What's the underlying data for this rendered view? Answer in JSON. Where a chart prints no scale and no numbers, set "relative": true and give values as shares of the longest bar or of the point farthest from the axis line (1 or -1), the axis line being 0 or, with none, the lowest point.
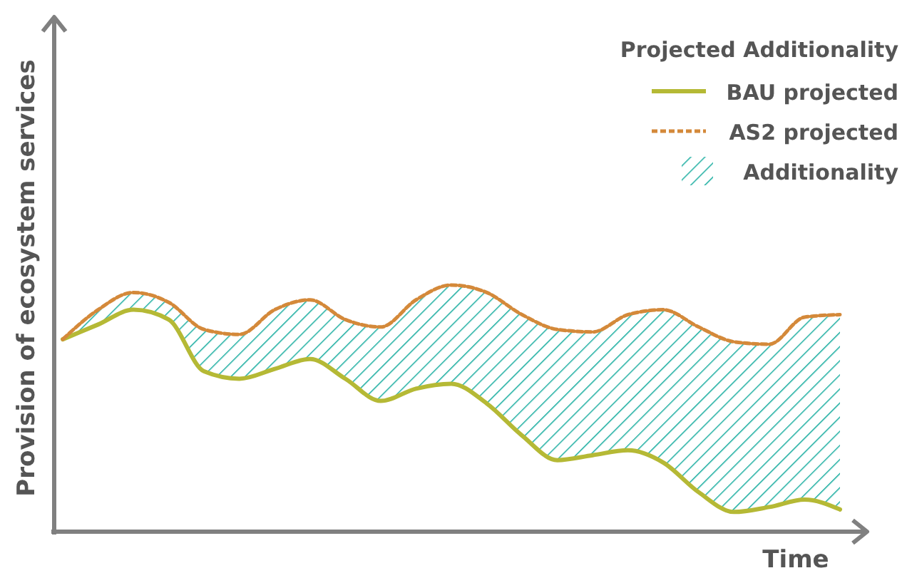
{
  "chart_data": {
    "type": "line",
    "relative": true,
    "xlabel": "Time",
    "ylabel": "Provision of ecosystem services",
    "legend_title": "Projected Additionality",
    "legend": "top right",
    "categories": [
      null,
      null,
      null,
      null,
      null,
      null,
      null,
      null,
      null,
      null,
      null,
      null,
      null,
      null,
      null,
      null,
      null,
      null,
      null,
      null,
      null,
      null,
      null
    ],
    "series": [
      {
        "name": "BAU projected",
        "type": "line",
        "color": "#b5b935",
        "line_style": "solid",
        "values": [
          0.78,
          0.84,
          0.9,
          0.86,
          0.65,
          0.62,
          0.66,
          0.7,
          0.62,
          0.53,
          0.58,
          0.6,
          0.52,
          0.39,
          0.29,
          0.31,
          0.33,
          0.28,
          0.16,
          0.08,
          0.1,
          0.13,
          0.09
        ]
      },
      {
        "name": "AS2 projected",
        "type": "line",
        "color": "#d4893a",
        "line_style": "dashed",
        "values": [
          0.78,
          0.9,
          0.97,
          0.93,
          0.82,
          0.8,
          0.9,
          0.94,
          0.86,
          0.83,
          0.94,
          1,
          0.97,
          0.88,
          0.82,
          0.81,
          0.88,
          0.9,
          0.83,
          0.77,
          0.76,
          0.87,
          0.88
        ],
        "lower": [
          0.78,
          0.84,
          0.9,
          0.86,
          0.65,
          0.62,
          0.66,
          0.7,
          0.62,
          0.53,
          0.58,
          0.6,
          0.52,
          0.39,
          0.29,
          0.31,
          0.33,
          0.28,
          0.16,
          0.08,
          0.1,
          0.13,
          0.09
        ],
        "upper": [
          0.78,
          0.9,
          0.97,
          0.93,
          0.82,
          0.8,
          0.9,
          0.94,
          0.86,
          0.83,
          0.94,
          1,
          0.97,
          0.88,
          0.82,
          0.81,
          0.88,
          0.9,
          0.83,
          0.77,
          0.76,
          0.87,
          0.88
        ]
      },
      {
        "name": "Additionality",
        "type": "area",
        "color": "#1aada0",
        "values": [
          null,
          null,
          null,
          null,
          null,
          null,
          null,
          null,
          null,
          null,
          null,
          null,
          null,
          null,
          null,
          null,
          null,
          null,
          null,
          null,
          null,
          null,
          null
        ]
      }
    ]
  }
}
